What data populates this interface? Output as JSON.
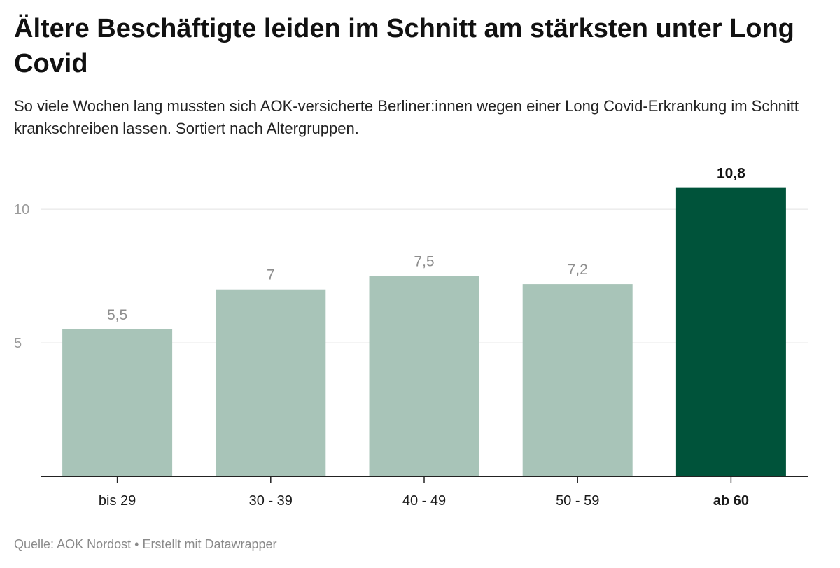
{
  "title": "Ältere Beschäftigte leiden im Schnitt am stärksten unter Long Covid",
  "subtitle": "So viele Wochen lang mussten sich AOK-versicherte Berliner:innen wegen einer Long Covid-Erkrankung im Schnitt krankschreiben lassen. Sortiert nach Altergruppen.",
  "footer": {
    "source_label": "Quelle:",
    "source": "AOK Nordost",
    "separator": "•",
    "credit": "Erstellt mit Datawrapper"
  },
  "colors": {
    "bar": "#a8c4b8",
    "highlight_bar": "#00533a",
    "value_label": "#8e8e8e",
    "highlight_value_label": "#111111",
    "grid": "#e2e2e2",
    "tick_label": "#9b9b9b",
    "axis": "#222222"
  },
  "chart_data": {
    "type": "bar",
    "categories": [
      "bis 29",
      "30 - 39",
      "40 - 49",
      "50 - 59",
      "ab 60"
    ],
    "values": [
      5.5,
      7,
      7.5,
      7.2,
      10.8
    ],
    "value_labels": [
      "5,5",
      "7",
      "7,5",
      "7,2",
      "10,8"
    ],
    "highlight_index": 4,
    "ylim": [
      0,
      11
    ],
    "yticks": [
      5,
      10
    ],
    "ytick_labels": [
      "5",
      "10"
    ],
    "xlabel": "",
    "ylabel": "",
    "grid": true
  }
}
